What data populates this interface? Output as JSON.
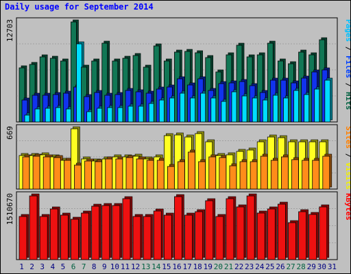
{
  "chart_data": {
    "type": "bar",
    "title": "Daily usage for September 2014",
    "categories": [
      "1",
      "2",
      "3",
      "4",
      "5",
      "6",
      "7",
      "8",
      "9",
      "10",
      "11",
      "12",
      "13",
      "14",
      "15",
      "16",
      "17",
      "18",
      "19",
      "20",
      "21",
      "22",
      "23",
      "24",
      "25",
      "26",
      "27",
      "28",
      "29",
      "30",
      "31"
    ],
    "weekend_days": [
      "6",
      "7",
      "13",
      "14",
      "20",
      "21",
      "27",
      "28"
    ],
    "panels": [
      {
        "name": "top",
        "scale_label": "12703",
        "ymax": 12703,
        "legend": [
          {
            "text": "Pages",
            "color": "#00C0FF"
          },
          {
            "text": " / ",
            "color": "#000000"
          },
          {
            "text": "Files",
            "color": "#0040FF"
          },
          {
            "text": " / ",
            "color": "#000000"
          },
          {
            "text": "Hits",
            "color": "#006040"
          }
        ],
        "series": [
          {
            "name": "Hits",
            "color": "#117755",
            "values": [
              6846,
              7324,
              8242,
              8061,
              7760,
              12703,
              6928,
              7742,
              10041,
              7760,
              8083,
              8403,
              6932,
              9649,
              7760,
              8909,
              8969,
              8826,
              8164,
              6350,
              8502,
              9706,
              8260,
              8502,
              10028,
              7742,
              7401,
              8849,
              8527,
              10410
            ]
          },
          {
            "name": "Files",
            "color": "#1133EE",
            "values": [
              2750,
              3410,
              3410,
              3520,
              3630,
              4400,
              3190,
              3740,
              3410,
              3520,
              3960,
              3850,
              3630,
              4180,
              4400,
              5500,
              4730,
              5500,
              3960,
              4840,
              4950,
              5170,
              4620,
              3740,
              5280,
              5280,
              4950,
              5610,
              6380,
              6600
            ]
          },
          {
            "name": "Pages",
            "color": "#00DDFF",
            "values": [
              880,
              1650,
              1760,
              1870,
              1650,
              9900,
              1320,
              1760,
              1870,
              1870,
              1980,
              1980,
              2310,
              2750,
              3080,
              3630,
              3080,
              3630,
              3080,
              2640,
              3850,
              3300,
              3080,
              2750,
              3410,
              3080,
              3960,
              3520,
              4180,
              5280
            ]
          }
        ]
      },
      {
        "name": "middle",
        "scale_label": "669",
        "ymax": 669,
        "legend": [
          {
            "text": "Sites",
            "color": "#FF8000"
          },
          {
            "text": " / ",
            "color": "#000000"
          },
          {
            "text": "Visits",
            "color": "#F0F000"
          }
        ],
        "series": [
          {
            "name": "Visits",
            "color": "#FFFF22",
            "values": [
              373,
              373,
              382,
              355,
              320,
              669,
              331,
              313,
              331,
              355,
              355,
              364,
              331,
              355,
              595,
              604,
              578,
              612,
              524,
              373,
              382,
              417,
              435,
              524,
              578,
              568,
              524,
              524,
              524,
              524
            ]
          },
          {
            "name": "Sites",
            "color": "#FF8C1A",
            "values": [
              355,
              364,
              355,
              346,
              320,
              268,
              313,
              304,
              331,
              331,
              346,
              331,
              320,
              320,
              250,
              304,
              408,
              302,
              355,
              346,
              260,
              304,
              304,
              364,
              320,
              355,
              325,
              320,
              320,
              364
            ]
          }
        ]
      },
      {
        "name": "bottom",
        "scale_label": "1510670",
        "ymax": 1510670,
        "legend": [
          {
            "text": "KBytes",
            "color": "#FF0000"
          }
        ],
        "series": [
          {
            "name": "KBytes",
            "color": "#EE1111",
            "values": [
              1023000,
              1510670,
              1023000,
              1206000,
              1051000,
              958000,
              1106000,
              1265000,
              1280000,
              1280000,
              1450000,
              1023000,
              1023000,
              1160000,
              1051000,
              1492000,
              1051000,
              1133000,
              1404000,
              1023000,
              1440000,
              1245000,
              1510670,
              1106000,
              1196000,
              1313000,
              872000,
              1133000,
              1078000,
              1245000
            ]
          }
        ]
      }
    ]
  }
}
